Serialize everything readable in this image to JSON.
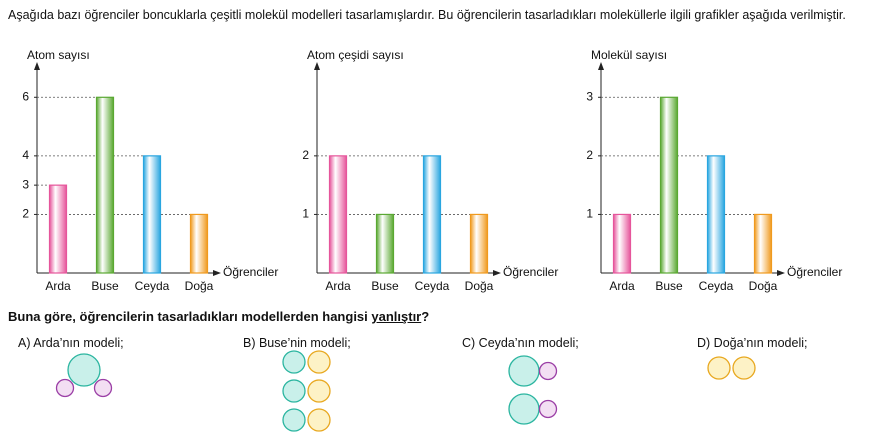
{
  "intro": "Aşağıda bazı öğrenciler boncuklarla çeşitli molekül modelleri tasarlamışlardır. Bu öğrencilerin tasarladıkları moleküllerle ilgili grafikler aşağıda verilmiştir.",
  "chart_data": [
    {
      "type": "bar",
      "y_label": "Atom sayısı",
      "x_label": "Öğrenciler",
      "categories": [
        "Arda",
        "Buse",
        "Ceyda",
        "Doğa"
      ],
      "values": [
        3,
        6,
        4,
        2
      ],
      "colors": [
        "#e6559b",
        "#5aa832",
        "#29a6e0",
        "#f09a1e"
      ],
      "ylim": [
        0,
        7
      ],
      "yticks": [
        2,
        3,
        4,
        6
      ],
      "grid": true
    },
    {
      "type": "bar",
      "y_label": "Atom çeşidi sayısı",
      "x_label": "Öğrenciler",
      "categories": [
        "Arda",
        "Buse",
        "Ceyda",
        "Doğa"
      ],
      "values": [
        2,
        1,
        2,
        1
      ],
      "colors": [
        "#e6559b",
        "#5aa832",
        "#29a6e0",
        "#f09a1e"
      ],
      "ylim": [
        0,
        3.5
      ],
      "yticks": [
        1,
        2
      ],
      "grid": true
    },
    {
      "type": "bar",
      "y_label": "Molekül sayısı",
      "x_label": "Öğrenciler",
      "categories": [
        "Arda",
        "Buse",
        "Ceyda",
        "Doğa"
      ],
      "values": [
        1,
        3,
        2,
        1
      ],
      "colors": [
        "#e6559b",
        "#5aa832",
        "#29a6e0",
        "#f09a1e"
      ],
      "ylim": [
        0,
        3.5
      ],
      "yticks": [
        1,
        2,
        3
      ],
      "grid": true
    }
  ],
  "question": {
    "prefix": "Buna göre, öğrencilerin tasarladıkları modellerden hangisi ",
    "underlined": "yanlıştır",
    "suffix": "?"
  },
  "options": [
    "A) Arda’nın modeli;",
    "B) Buse’nin modeli;",
    "C) Ceyda’nın modeli;",
    "D) Doğa’nın modeli;"
  ]
}
